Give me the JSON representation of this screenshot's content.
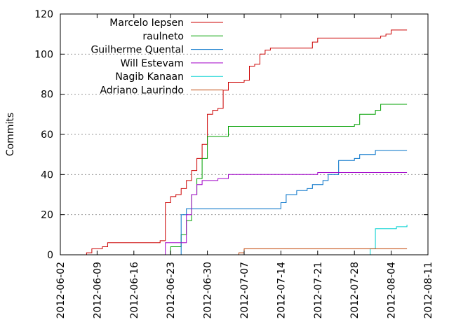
{
  "chart_data": {
    "type": "line",
    "title": "",
    "xlabel": "",
    "ylabel": "Commits",
    "x_axis": {
      "type": "date",
      "min": "2012-06-02",
      "max": "2012-08-11",
      "ticks": [
        "2012-06-02",
        "2012-06-09",
        "2012-06-16",
        "2012-06-23",
        "2012-06-30",
        "2012-07-07",
        "2012-07-14",
        "2012-07-21",
        "2012-07-28",
        "2012-08-04",
        "2012-08-11"
      ]
    },
    "y_axis": {
      "min": 0,
      "max": 120,
      "ticks": [
        0,
        20,
        40,
        60,
        80,
        100,
        120
      ]
    },
    "grid": "horizontal-dotted",
    "legend_position": "top-left",
    "series": [
      {
        "name": "Marcelo Iepsen",
        "color": "#cc0000",
        "points": [
          [
            "2012-06-07",
            0
          ],
          [
            "2012-06-07",
            1
          ],
          [
            "2012-06-08",
            2
          ],
          [
            "2012-06-08",
            3
          ],
          [
            "2012-06-10",
            4
          ],
          [
            "2012-06-11",
            5
          ],
          [
            "2012-06-11",
            6
          ],
          [
            "2012-06-21",
            7
          ],
          [
            "2012-06-22",
            19
          ],
          [
            "2012-06-22",
            26
          ],
          [
            "2012-06-23",
            29
          ],
          [
            "2012-06-24",
            30
          ],
          [
            "2012-06-25",
            33
          ],
          [
            "2012-06-26",
            37
          ],
          [
            "2012-06-27",
            39
          ],
          [
            "2012-06-27",
            42
          ],
          [
            "2012-06-28",
            48
          ],
          [
            "2012-06-29",
            55
          ],
          [
            "2012-06-30",
            70
          ],
          [
            "2012-07-01",
            72
          ],
          [
            "2012-07-02",
            73
          ],
          [
            "2012-07-03",
            76
          ],
          [
            "2012-07-03",
            82
          ],
          [
            "2012-07-04",
            86
          ],
          [
            "2012-07-07",
            87
          ],
          [
            "2012-07-08",
            94
          ],
          [
            "2012-07-09",
            95
          ],
          [
            "2012-07-10",
            100
          ],
          [
            "2012-07-11",
            102
          ],
          [
            "2012-07-12",
            103
          ],
          [
            "2012-07-20",
            106
          ],
          [
            "2012-07-21",
            108
          ],
          [
            "2012-07-30",
            108
          ],
          [
            "2012-08-02",
            109
          ],
          [
            "2012-08-03",
            110
          ],
          [
            "2012-08-04",
            112
          ],
          [
            "2012-08-07",
            112
          ]
        ]
      },
      {
        "name": "raulneto",
        "color": "#00a000",
        "points": [
          [
            "2012-06-22",
            0
          ],
          [
            "2012-06-23",
            4
          ],
          [
            "2012-06-25",
            5
          ],
          [
            "2012-06-25",
            10
          ],
          [
            "2012-06-26",
            17
          ],
          [
            "2012-06-27",
            30
          ],
          [
            "2012-06-28",
            38
          ],
          [
            "2012-06-29",
            48
          ],
          [
            "2012-06-30",
            59
          ],
          [
            "2012-07-04",
            60
          ],
          [
            "2012-07-04",
            64
          ],
          [
            "2012-07-27",
            64
          ],
          [
            "2012-07-28",
            65
          ],
          [
            "2012-07-29",
            68
          ],
          [
            "2012-07-29",
            70
          ],
          [
            "2012-08-01",
            72
          ],
          [
            "2012-08-02",
            75
          ],
          [
            "2012-08-07",
            75
          ]
        ]
      },
      {
        "name": "Guilherme Quental",
        "color": "#0070c8",
        "points": [
          [
            "2012-06-24",
            0
          ],
          [
            "2012-06-25",
            20
          ],
          [
            "2012-06-26",
            23
          ],
          [
            "2012-07-13",
            23
          ],
          [
            "2012-07-14",
            26
          ],
          [
            "2012-07-15",
            30
          ],
          [
            "2012-07-17",
            32
          ],
          [
            "2012-07-19",
            33
          ],
          [
            "2012-07-20",
            35
          ],
          [
            "2012-07-22",
            37
          ],
          [
            "2012-07-23",
            40
          ],
          [
            "2012-07-25",
            42
          ],
          [
            "2012-07-25",
            47
          ],
          [
            "2012-07-28",
            48
          ],
          [
            "2012-07-29",
            50
          ],
          [
            "2012-08-01",
            52
          ],
          [
            "2012-08-07",
            52
          ]
        ]
      },
      {
        "name": "Will Estevam",
        "color": "#a000c8",
        "points": [
          [
            "2012-06-22",
            0
          ],
          [
            "2012-06-22",
            6
          ],
          [
            "2012-06-25",
            6
          ],
          [
            "2012-06-26",
            12
          ],
          [
            "2012-06-26",
            20
          ],
          [
            "2012-06-27",
            30
          ],
          [
            "2012-06-28",
            32
          ],
          [
            "2012-06-28",
            35
          ],
          [
            "2012-06-29",
            37
          ],
          [
            "2012-07-02",
            38
          ],
          [
            "2012-07-04",
            40
          ],
          [
            "2012-07-21",
            40
          ],
          [
            "2012-07-21",
            41
          ],
          [
            "2012-08-07",
            41
          ]
        ]
      },
      {
        "name": "Nagib Kanaan",
        "color": "#00d0d0",
        "points": [
          [
            "2012-07-30",
            0
          ],
          [
            "2012-07-31",
            3
          ],
          [
            "2012-08-01",
            7
          ],
          [
            "2012-08-01",
            13
          ],
          [
            "2012-08-05",
            14
          ],
          [
            "2012-08-07",
            15
          ]
        ]
      },
      {
        "name": "Adriano Laurindo",
        "color": "#c04000",
        "points": [
          [
            "2012-07-05",
            0
          ],
          [
            "2012-07-06",
            1
          ],
          [
            "2012-07-07",
            3
          ],
          [
            "2012-08-07",
            3
          ]
        ]
      }
    ]
  }
}
